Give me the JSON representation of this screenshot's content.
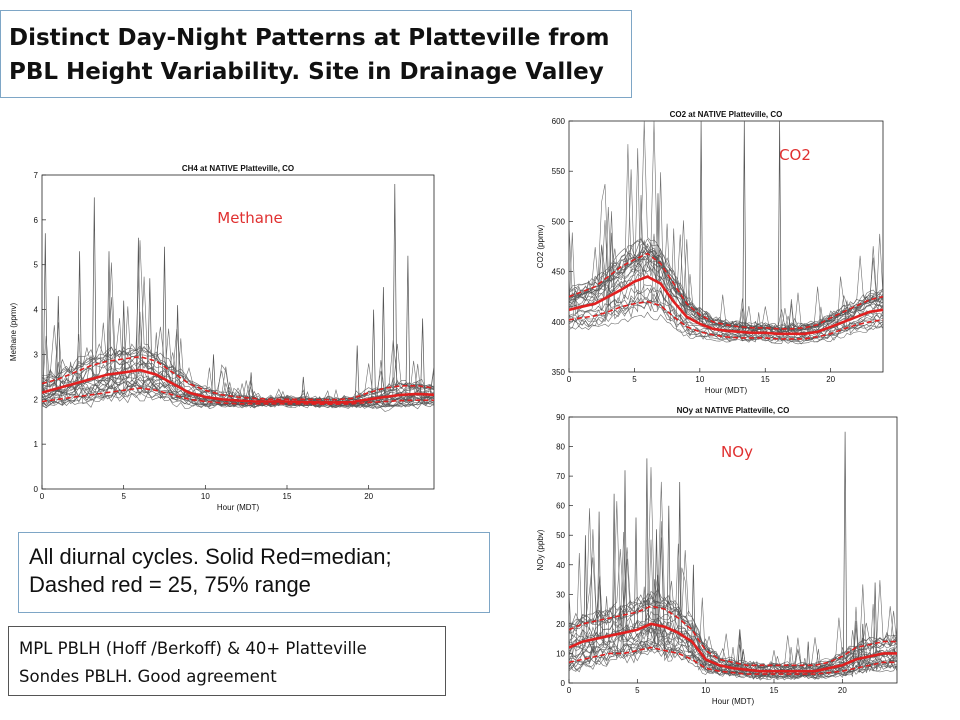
{
  "slide": {
    "title_line1": "Distinct Day-Night Patterns at Platteville from",
    "title_line2": "PBL Height Variability.  Site in Drainage Valley",
    "note1_line1": "All diurnal cycles.  Solid Red=median;",
    "note1_line2": "Dashed red = 25, 75% range",
    "note2_line1": "MPL PBLH (Hoff /Berkoff) & 40+ Platteville",
    "note2_line2": " Sondes PBLH.  Good agreement"
  },
  "colors": {
    "traces": "#555555",
    "median": "#e02020",
    "quartiles": "#e02020",
    "label": "#e03030",
    "box_border": "#7ea6c6"
  },
  "chart_data": [
    {
      "id": "ch4",
      "type": "line",
      "title": "CH4 at NATIVE Platteville, CO",
      "xlabel": "Hour (MDT)",
      "ylabel": "Methane (ppmv)",
      "series_label": "Methane",
      "xlim": [
        0,
        24
      ],
      "ylim": [
        0,
        7
      ],
      "xticks": [
        0,
        5,
        10,
        15,
        20
      ],
      "yticks": [
        0,
        1,
        2,
        3,
        4,
        5,
        6,
        7
      ],
      "hours": [
        0,
        1,
        2,
        3,
        4,
        5,
        6,
        7,
        8,
        9,
        10,
        11,
        12,
        13,
        14,
        15,
        16,
        17,
        18,
        19,
        20,
        21,
        22,
        23,
        24
      ],
      "median": [
        2.15,
        2.25,
        2.35,
        2.45,
        2.55,
        2.6,
        2.65,
        2.55,
        2.35,
        2.15,
        2.05,
        2.0,
        1.97,
        1.95,
        1.95,
        1.95,
        1.94,
        1.93,
        1.93,
        1.94,
        2.0,
        2.05,
        2.1,
        2.12,
        2.1
      ],
      "q25": [
        1.95,
        2.0,
        2.05,
        2.1,
        2.15,
        2.2,
        2.25,
        2.2,
        2.1,
        2.0,
        1.95,
        1.92,
        1.9,
        1.9,
        1.9,
        1.9,
        1.9,
        1.89,
        1.89,
        1.9,
        1.93,
        1.95,
        1.97,
        1.98,
        1.98
      ],
      "q75": [
        2.35,
        2.45,
        2.6,
        2.75,
        2.85,
        2.9,
        2.95,
        2.85,
        2.6,
        2.35,
        2.2,
        2.1,
        2.05,
        2.02,
        2.0,
        2.0,
        2.0,
        1.99,
        1.99,
        2.02,
        2.15,
        2.25,
        2.3,
        2.3,
        2.25
      ],
      "spikes": [
        [
          0.2,
          5.7
        ],
        [
          1.0,
          4.3
        ],
        [
          2.3,
          5.3
        ],
        [
          3.2,
          6.5
        ],
        [
          4.1,
          5.3
        ],
        [
          5.0,
          4.2
        ],
        [
          5.9,
          5.6
        ],
        [
          6.6,
          4.7
        ],
        [
          7.5,
          5.4
        ],
        [
          8.3,
          4.1
        ],
        [
          10.5,
          3.0
        ],
        [
          12.8,
          2.6
        ],
        [
          16.0,
          2.5
        ],
        [
          19.3,
          3.2
        ],
        [
          20.3,
          4.0
        ],
        [
          20.9,
          4.5
        ],
        [
          21.6,
          6.8
        ],
        [
          22.4,
          5.2
        ],
        [
          23.3,
          3.8
        ]
      ],
      "trace_count": 30
    },
    {
      "id": "co2",
      "type": "line",
      "title": "CO2 at NATIVE Platteville, CO",
      "xlabel": "Hour (MDT)",
      "ylabel": "CO2 (ppmv)",
      "series_label": "CO2",
      "xlim": [
        0,
        24
      ],
      "ylim": [
        350,
        600
      ],
      "xticks": [
        0,
        5,
        10,
        15,
        20
      ],
      "yticks": [
        350,
        400,
        450,
        500,
        550,
        600
      ],
      "hours": [
        0,
        1,
        2,
        3,
        4,
        5,
        6,
        7,
        8,
        9,
        10,
        11,
        12,
        13,
        14,
        15,
        16,
        17,
        18,
        19,
        20,
        21,
        22,
        23,
        24
      ],
      "median": [
        412,
        415,
        418,
        425,
        432,
        440,
        445,
        438,
        420,
        405,
        398,
        393,
        391,
        390,
        389,
        389,
        388,
        388,
        388,
        390,
        395,
        400,
        405,
        410,
        412
      ],
      "q25": [
        402,
        404,
        406,
        410,
        415,
        418,
        420,
        416,
        405,
        395,
        390,
        387,
        385,
        384,
        384,
        384,
        383,
        383,
        383,
        385,
        388,
        393,
        397,
        400,
        402
      ],
      "q75": [
        425,
        430,
        435,
        445,
        455,
        462,
        468,
        458,
        438,
        418,
        407,
        400,
        397,
        395,
        394,
        394,
        393,
        393,
        394,
        397,
        404,
        410,
        416,
        422,
        425
      ],
      "spikes": [
        [
          10.1,
          600
        ],
        [
          13.4,
          600
        ],
        [
          16.1,
          600
        ],
        [
          6.8,
          528
        ]
      ],
      "trace_count": 30
    },
    {
      "id": "noy",
      "type": "line",
      "title": "NOy at NATIVE Platteville, CO",
      "xlabel": "Hour (MDT)",
      "ylabel": "NOy (ppbv)",
      "series_label": "NOy",
      "xlim": [
        0,
        24
      ],
      "ylim": [
        0,
        90
      ],
      "xticks": [
        0,
        5,
        10,
        15,
        20
      ],
      "yticks": [
        0,
        10,
        20,
        30,
        40,
        50,
        60,
        70,
        80,
        90
      ],
      "hours": [
        0,
        1,
        2,
        3,
        4,
        5,
        6,
        7,
        8,
        9,
        10,
        11,
        12,
        13,
        14,
        15,
        16,
        17,
        18,
        19,
        20,
        21,
        22,
        23,
        24
      ],
      "median": [
        12,
        14,
        15,
        16,
        17,
        18,
        20,
        19,
        17,
        14,
        8,
        6,
        5,
        4.5,
        4,
        4,
        4,
        4,
        4,
        5,
        6,
        8,
        9,
        10,
        10
      ],
      "q25": [
        7,
        8,
        9,
        10,
        10,
        11,
        12,
        11,
        10,
        8,
        5,
        4,
        3.5,
        3,
        3,
        3,
        3,
        3,
        3,
        3.5,
        4,
        5,
        6,
        7,
        7
      ],
      "q75": [
        18,
        20,
        21,
        22,
        23,
        24,
        26,
        25,
        22,
        18,
        11,
        8,
        7,
        6,
        6,
        6,
        6,
        6,
        6,
        7,
        9,
        12,
        13,
        14,
        14
      ],
      "spikes": [
        [
          1.2,
          50
        ],
        [
          2.2,
          58
        ],
        [
          3.3,
          64
        ],
        [
          4.1,
          72
        ],
        [
          4.9,
          56
        ],
        [
          5.7,
          76
        ],
        [
          6.4,
          52
        ],
        [
          7.3,
          60
        ],
        [
          8.1,
          68
        ],
        [
          9.1,
          40
        ],
        [
          12.5,
          18
        ],
        [
          17.5,
          14
        ],
        [
          20.2,
          85
        ],
        [
          21.5,
          20
        ],
        [
          22.4,
          34
        ]
      ],
      "trace_count": 30
    }
  ]
}
